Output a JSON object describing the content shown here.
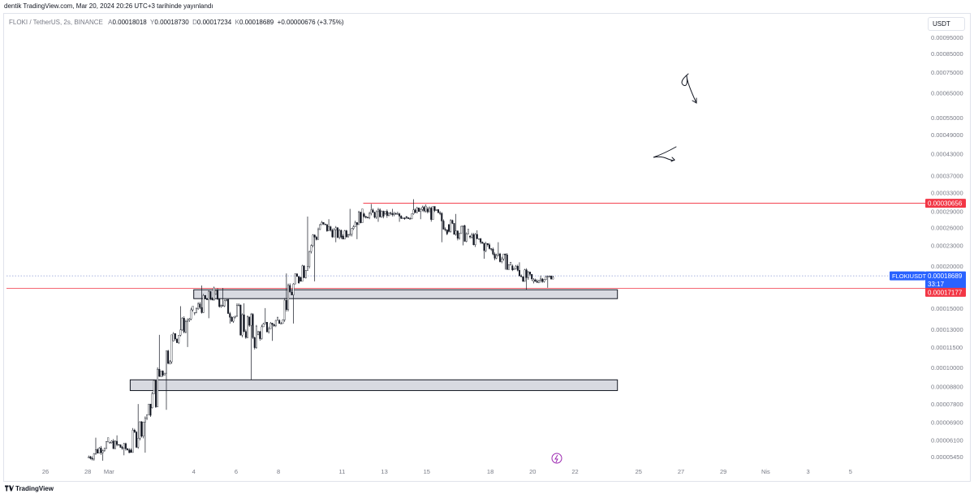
{
  "header": {
    "published": "dentik TradingView.com, Mar 20, 2024 20:26 UTC+3 tarihinde yayınlandı"
  },
  "legend": {
    "symbol": "FLOKI / TetherUS, 2s, BINANCE",
    "o_label": "A",
    "o": "0.00018018",
    "h_label": "Y",
    "h": "0.00018730",
    "l_label": "D",
    "l": "0.00017234",
    "c_label": "K",
    "c": "0.00018689",
    "change": "+0.00000676 (+3.75%)"
  },
  "currency_button": "USDT",
  "footer": {
    "brand": "TradingView"
  },
  "colors": {
    "up": "#131722",
    "down": "#131722",
    "red_line": "#f23645",
    "last_price": "#2962ff",
    "dotted": "#8c9ad6",
    "zone_fill": "#d1d4dc"
  },
  "chart_data": {
    "type": "candlestick",
    "symbol": "FLOKIUSDT",
    "timeframe": "2s",
    "y_scale": "log",
    "price_ticks": [
      "0.00095000",
      "0.00085000",
      "0.00075000",
      "0.00065000",
      "0.00055000",
      "0.00049000",
      "0.00043000",
      "0.00037000",
      "0.00033000",
      "0.00029000",
      "0.00026000",
      "0.00023000",
      "0.00020000",
      "0.00015000",
      "0.00013000",
      "0.00011500",
      "0.00010000",
      "0.00008800",
      "0.00007800",
      "0.00006900",
      "0.00006100",
      "0.00005450"
    ],
    "x_ticks": [
      "26",
      "28",
      "Mar",
      "4",
      "6",
      "8",
      "11",
      "13",
      "15",
      "18",
      "20",
      "22",
      "25",
      "27",
      "29",
      "Nis",
      "3",
      "5"
    ],
    "price_labels": {
      "resistance": "0.00030656",
      "symbol": "FLOKIUSDT",
      "last": "0.00018689",
      "countdown": "33:17",
      "support": "0.00017177"
    },
    "levels": {
      "resistance": 0.00030656,
      "support": 0.00017177,
      "last": 0.00018689,
      "resistance_from": "Mar 12"
    },
    "zones": [
      {
        "from": "Mar 4",
        "to": "Mar 24",
        "low": 0.00016,
        "high": 0.00017
      },
      {
        "from": "Mar 1",
        "to": "Mar 24",
        "low": 8.55e-05,
        "high": 9.2e-05
      }
    ],
    "series": [
      {
        "values": [
          [
            "Feb 28",
            5.4e-05,
            6.2e-05,
            5.3e-05,
            6e-05
          ],
          [
            "Feb 29",
            6e-05,
            6.3e-05,
            5.5e-05,
            5.7e-05
          ],
          [
            "Mar 1",
            5.7e-05,
            7.8e-05,
            5.6e-05,
            7.6e-05
          ],
          [
            "Mar 2",
            7.6e-05,
            0.000125,
            7.5e-05,
            0.00012
          ],
          [
            "Mar 3",
            0.00012,
            0.000152,
            0.000115,
            0.000145
          ],
          [
            "Mar 4",
            0.000145,
            0.000175,
            0.00014,
            0.000165
          ],
          [
            "Mar 5",
            0.000165,
            0.000172,
            0.000135,
            0.000142
          ],
          [
            "Mar 6",
            0.000142,
            0.000155,
            9.2e-05,
            0.000125
          ],
          [
            "Mar 7",
            0.000125,
            0.00015,
            0.00012,
            0.000138
          ],
          [
            "Mar 8",
            0.000138,
            0.00019,
            0.000135,
            0.000185
          ],
          [
            "Mar 9",
            0.000185,
            0.00028,
            0.00018,
            0.000265
          ],
          [
            "Mar 10",
            0.000265,
            0.000275,
            0.000235,
            0.000245
          ],
          [
            "Mar 11",
            0.000245,
            0.000295,
            0.00024,
            0.000285
          ],
          [
            "Mar 12",
            0.000285,
            0.000305,
            0.00027,
            0.000285
          ],
          [
            "Mar 13",
            0.000285,
            0.000295,
            0.00027,
            0.00028
          ],
          [
            "Mar 14",
            0.00028,
            0.000315,
            0.000275,
            0.000295
          ],
          [
            "Mar 15",
            0.000295,
            0.0003,
            0.000235,
            0.000265
          ],
          [
            "Mar 16",
            0.000265,
            0.000285,
            0.00023,
            0.000245
          ],
          [
            "Mar 17",
            0.000245,
            0.000255,
            0.00021,
            0.000225
          ],
          [
            "Mar 18",
            0.000225,
            0.000235,
            0.000195,
            0.0002
          ],
          [
            "Mar 19",
            0.0002,
            0.000205,
            0.00017,
            0.00018
          ],
          [
            "Mar 20",
            0.00018,
            0.0001873,
            0.0001723,
            0.0001869
          ]
        ]
      }
    ]
  }
}
